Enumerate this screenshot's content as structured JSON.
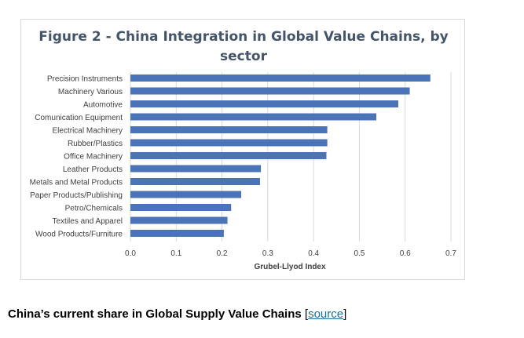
{
  "chart_data": {
    "type": "bar",
    "orientation": "horizontal",
    "title_line1": "Figure 2 - China Integration in Global Value Chains, by",
    "title_line2": "sector",
    "xlabel": "Grubel-Llyod Index",
    "ylabel": "",
    "xlim": [
      0,
      0.7
    ],
    "x_ticks": [
      "0.0",
      "0.1",
      "0.2",
      "0.3",
      "0.4",
      "0.5",
      "0.6",
      "0.7"
    ],
    "categories": [
      "Precision Instruments",
      "Machinery Various",
      "Automotive",
      "Comunication Equipment",
      "Electrical Machinery",
      "Rubber/Plastics",
      "Office Machinery",
      "Leather Products",
      "Metals and Metal Products",
      "Paper Products/Publishing",
      "Petro/Chemicals",
      "Textiles and Apparel",
      "Wood Products/Furniture"
    ],
    "values": [
      0.655,
      0.61,
      0.585,
      0.537,
      0.43,
      0.43,
      0.428,
      0.285,
      0.283,
      0.242,
      0.22,
      0.212,
      0.204
    ],
    "bar_color": "#4a73b8",
    "grid": "vertical",
    "legend": "none"
  },
  "caption": {
    "text": "China’s current share in Global Supply Value Chains",
    "bracket_open": " [",
    "link_text": "source",
    "bracket_close": "]"
  }
}
